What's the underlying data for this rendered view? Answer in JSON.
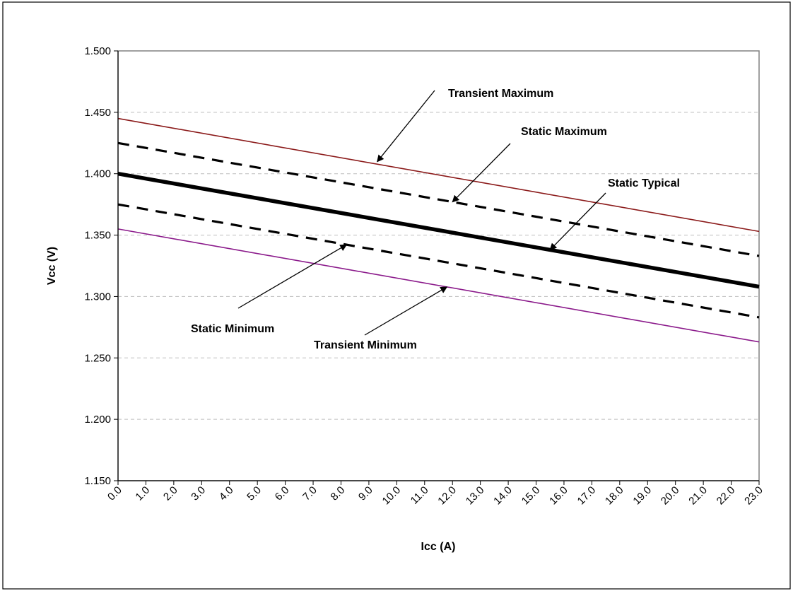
{
  "chart_data": {
    "type": "line",
    "title": "",
    "xlabel": "Icc (A)",
    "ylabel": "Vcc (V)",
    "x": [
      0,
      23
    ],
    "x_ticks": [
      "0.0",
      "1.0",
      "2.0",
      "3.0",
      "4.0",
      "5.0",
      "6.0",
      "7.0",
      "8.0",
      "9.0",
      "10.0",
      "11.0",
      "12.0",
      "13.0",
      "14.0",
      "15.0",
      "16.0",
      "17.0",
      "18.0",
      "19.0",
      "20.0",
      "21.0",
      "22.0",
      "23.0"
    ],
    "xlim": [
      0,
      23
    ],
    "ylim": [
      1.15,
      1.5
    ],
    "y_ticks": [
      "1.150",
      "1.200",
      "1.250",
      "1.300",
      "1.350",
      "1.400",
      "1.450",
      "1.500"
    ],
    "grid": "horizontal dashed",
    "legend": "none",
    "series": [
      {
        "name": "Transient Maximum",
        "values": [
          1.445,
          1.353
        ],
        "color": "#8b1a1a",
        "style": "solid-thin"
      },
      {
        "name": "Static Maximum",
        "values": [
          1.425,
          1.333
        ],
        "color": "#000000",
        "style": "dashed-thick"
      },
      {
        "name": "Static Typical",
        "values": [
          1.4,
          1.308
        ],
        "color": "#000000",
        "style": "solid-thick"
      },
      {
        "name": "Static Minimum",
        "values": [
          1.375,
          1.283
        ],
        "color": "#000000",
        "style": "dashed-thick"
      },
      {
        "name": "Transient Minimum",
        "values": [
          1.355,
          1.263
        ],
        "color": "#8b1a8b",
        "style": "solid-thin"
      }
    ],
    "annotations": [
      {
        "text": "Transient Maximum",
        "points_to": [
          9.3,
          1.4098
        ]
      },
      {
        "text": "Static Maximum",
        "points_to": [
          12.0,
          1.377
        ]
      },
      {
        "text": "Static Typical",
        "points_to": [
          15.5,
          1.338
        ]
      },
      {
        "text": "Static Minimum",
        "points_to": [
          8.2,
          1.3422
        ]
      },
      {
        "text": "Transient Minimum",
        "points_to": [
          11.8,
          1.3078
        ]
      }
    ]
  }
}
